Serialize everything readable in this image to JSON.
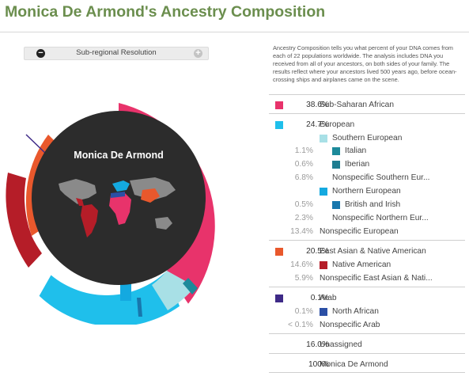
{
  "header": {
    "title": "Monica De Armond's Ancestry Composition"
  },
  "resolution": {
    "label": "Sub-regional Resolution",
    "minus_icon": "minus-icon",
    "plus_icon": "plus-icon"
  },
  "chart_center_label": "Monica De Armond",
  "description": "Ancestry Composition tells you what percent of your DNA comes from each of 22 populations worldwide. The analysis includes DNA you received from all of your ancestors, on both sides of your family. The results reflect where your ancestors lived 500 years ago, before ocean-crossing ships and airplanes came on the scene.",
  "colors": {
    "sub_saharan": "#e8336b",
    "european": "#1fbfeb",
    "southern_european": "#a8e0e6",
    "italian": "#1c8a9a",
    "iberian": "#1e7d90",
    "northern_european": "#14a9e0",
    "british_irish": "#1877ad",
    "east_asian_native": "#e9582c",
    "native_american": "#b51d28",
    "arab": "#3e2a87",
    "north_african": "#2b4fa5"
  },
  "rows": [
    {
      "pct": "38.6%",
      "name": "Sub-Saharan African",
      "color": "#e8336b",
      "level": 0
    },
    {
      "pct": "24.7%",
      "name": "European",
      "color": "#1fbfeb",
      "level": 0
    },
    {
      "pct": "",
      "name": "Southern European",
      "color": "#a8e0e6",
      "level": 1
    },
    {
      "pct": "1.1%",
      "name": "Italian",
      "color": "#1c8a9a",
      "level": 2
    },
    {
      "pct": "0.6%",
      "name": "Iberian",
      "color": "#1e7d90",
      "level": 2
    },
    {
      "pct": "6.8%",
      "name": "Nonspecific Southern Eur...",
      "color": "",
      "level": 2
    },
    {
      "pct": "",
      "name": "Northern European",
      "color": "#14a9e0",
      "level": 1
    },
    {
      "pct": "0.5%",
      "name": "British and Irish",
      "color": "#1877ad",
      "level": 2
    },
    {
      "pct": "2.3%",
      "name": "Nonspecific Northern Eur...",
      "color": "",
      "level": 2
    },
    {
      "pct": "13.4%",
      "name": "Nonspecific European",
      "color": "",
      "level": 1
    },
    {
      "pct": "20.5%",
      "name": "East Asian & Native American",
      "color": "#e9582c",
      "level": 0
    },
    {
      "pct": "14.6%",
      "name": "Native American",
      "color": "#b51d28",
      "level": 1
    },
    {
      "pct": "5.9%",
      "name": "Nonspecific East Asian & Nati...",
      "color": "",
      "level": 1
    },
    {
      "pct": "0.1%",
      "name": "Arab",
      "color": "#3e2a87",
      "level": 0
    },
    {
      "pct": "0.1%",
      "name": "North African",
      "color": "#2b4fa5",
      "level": 1
    },
    {
      "pct": "< 0.1%",
      "name": "Nonspecific Arab",
      "color": "",
      "level": 1
    },
    {
      "pct": "16.0%",
      "name": "Unassigned",
      "color": "",
      "level": 0
    },
    {
      "pct": "100%",
      "name": "Monica De Armond",
      "color": "",
      "level": 0
    }
  ]
}
